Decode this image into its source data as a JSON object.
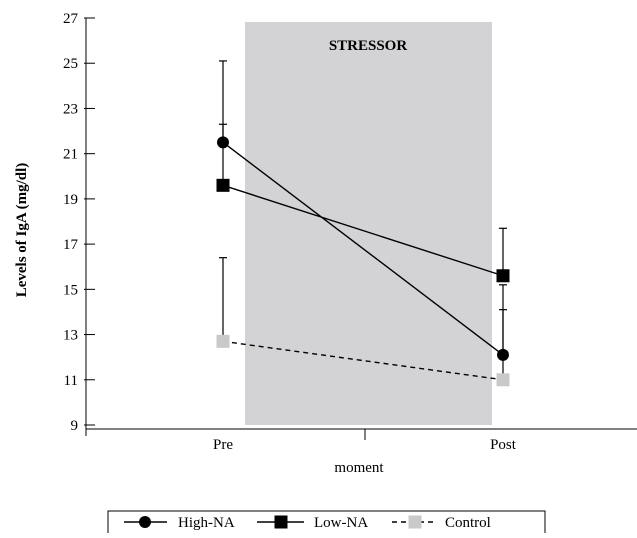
{
  "chart_data": {
    "type": "line",
    "title": "",
    "xlabel": "moment",
    "ylabel": "Levels of IgA (mg/dl)",
    "categories": [
      "Pre",
      "Post"
    ],
    "ylim": [
      9,
      27
    ],
    "yticks": [
      9,
      11,
      13,
      15,
      17,
      19,
      21,
      23,
      25,
      27
    ],
    "shaded_region": {
      "label": "STRESSOR",
      "color": "#d3d3d5"
    },
    "series": [
      {
        "name": "High-NA",
        "marker": "circle",
        "line_style": "solid",
        "color": "#000000",
        "values": [
          21.5,
          12.1
        ],
        "error_upper": [
          25.1,
          15.2
        ],
        "error_lower": [
          null,
          null
        ]
      },
      {
        "name": "Low-NA",
        "marker": "square",
        "line_style": "solid",
        "color": "#000000",
        "values": [
          19.6,
          15.6
        ],
        "error_upper": [
          22.3,
          17.7
        ],
        "error_lower": [
          null,
          null
        ]
      },
      {
        "name": "Control",
        "marker": "square",
        "line_style": "dashed",
        "color": "#c9c9c9",
        "values": [
          12.7,
          11.0
        ],
        "error_upper": [
          16.4,
          14.1
        ],
        "error_lower": [
          null,
          null
        ]
      }
    ],
    "legend": {
      "position": "bottom",
      "entries": [
        "High-NA",
        "Low-NA",
        "Control"
      ]
    },
    "grid": false
  }
}
